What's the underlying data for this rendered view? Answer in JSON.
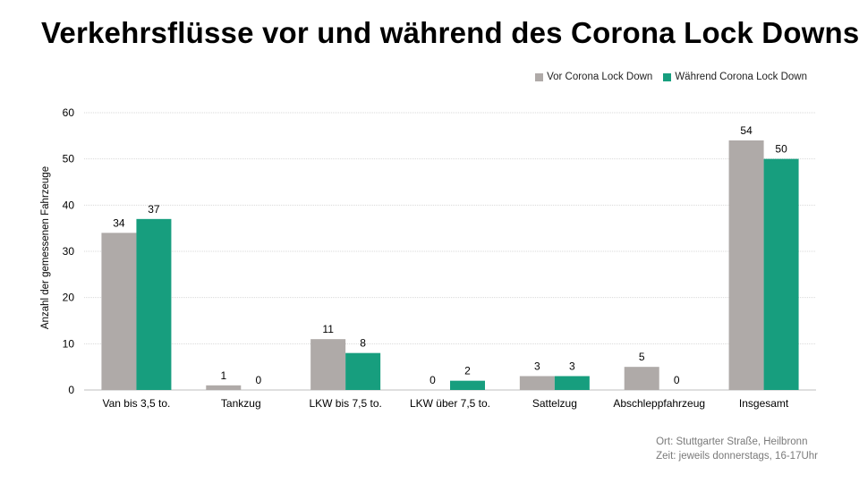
{
  "title": "Verkehrsflüsse vor und während des Corona Lock Downs",
  "footnote": {
    "line1": "Ort: Stuttgarter Straße, Heilbronn",
    "line2": "Zeit: jeweils donnerstags, 16-17Uhr"
  },
  "colors": {
    "before": "#afaaa8",
    "during": "#179e7e",
    "grid": "#d9d9d9",
    "axis": "#bfbfbf"
  },
  "chart_data": {
    "type": "bar",
    "title": "Verkehrsflüsse vor und während des Corona Lock Downs",
    "xlabel": "",
    "ylabel": "Anzahl der gemessenen Fahrzeuge",
    "ylim": [
      0,
      60
    ],
    "yticks": [
      0,
      10,
      20,
      30,
      40,
      50,
      60
    ],
    "grid": true,
    "legend_position": "top-right",
    "categories": [
      "Van bis 3,5 to.",
      "Tankzug",
      "LKW bis 7,5 to.",
      "LKW über 7,5 to.",
      "Sattelzug",
      "Abschleppfahrzeug",
      "Insgesamt"
    ],
    "series": [
      {
        "name": "Vor Corona Lock Down",
        "values": [
          34,
          1,
          11,
          0,
          3,
          5,
          54
        ]
      },
      {
        "name": "Während Corona Lock Down",
        "values": [
          37,
          0,
          8,
          2,
          3,
          0,
          50
        ]
      }
    ]
  }
}
